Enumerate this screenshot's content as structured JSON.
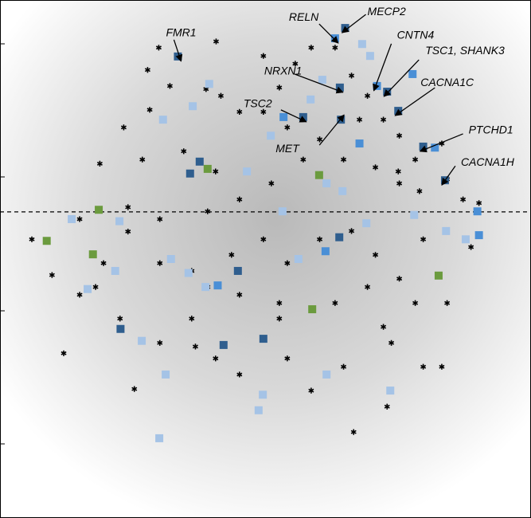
{
  "chart_data": {
    "type": "scatter",
    "xlim": [
      0,
      100
    ],
    "ylim": [
      0,
      100
    ],
    "reference_line": 59.1,
    "series": [
      {
        "marker": "star",
        "color": "#000000",
        "x": [
          29.9,
          40.7,
          27.8,
          32,
          28.2,
          38.8,
          41.6,
          23.3,
          18.8,
          26.8,
          34.6,
          40.6,
          45.1,
          49.6,
          55.6,
          58.6,
          63.1,
          66.2,
          69.2,
          52.6,
          49.6,
          54.1,
          60.2,
          67.7,
          72.2,
          75.2,
          78.2,
          75.2,
          70.7,
          64.7,
          57.1,
          51.1,
          45.1,
          39.1,
          30.1,
          24.1,
          15,
          6,
          9.8,
          15,
          19.5,
          24.1,
          30.1,
          36.1,
          43.6,
          49.6,
          54.1,
          60.2,
          66.2,
          70.7,
          75.2,
          78.2,
          84.2,
          79.7,
          87.2,
          90.2,
          88.7,
          69.2,
          63.1,
          52.6,
          45.1,
          39.1,
          36.1,
          30.1,
          36.8,
          40.6,
          45.1,
          52.6,
          54.1,
          58.6,
          64.7,
          72.2,
          73.7,
          79.7,
          83.2,
          72.9,
          66.6,
          25.3,
          12,
          22.6,
          18,
          83.2,
          84.2,
          79,
          75
        ],
        "y": [
          90.8,
          92,
          86.5,
          83.4,
          78.8,
          82.8,
          81.5,
          75.4,
          68.4,
          69.2,
          70.8,
          66.9,
          78.4,
          89.2,
          87.7,
          90.8,
          90.8,
          85.4,
          81.5,
          83.1,
          78.4,
          75.4,
          73.1,
          76.9,
          76.9,
          73.8,
          69.2,
          64.6,
          67.7,
          69.2,
          69.2,
          64.6,
          61.5,
          59.2,
          57.7,
          60,
          57.7,
          53.8,
          46.9,
          43.1,
          49.2,
          55.3,
          49.2,
          47.7,
          50.8,
          53.8,
          49.2,
          53.8,
          55.4,
          50.8,
          46.2,
          41.5,
          41.5,
          53.8,
          61.5,
          60.8,
          52.3,
          44.6,
          41.5,
          41.5,
          43.1,
          44.6,
          38.5,
          33.8,
          33.1,
          30.8,
          27.7,
          38.5,
          30.8,
          24.6,
          29.2,
          36.9,
          33.8,
          29.2,
          29.2,
          21.5,
          16.6,
          24.9,
          31.8,
          38.5,
          44.6,
          72.3,
          65.4,
          63.1,
          66.9
        ]
      },
      {
        "marker": "square",
        "color": "#2f5e8e",
        "x": [
          33.5,
          65,
          57.1,
          64.2,
          75,
          72.9,
          83.8,
          79.7,
          37.6,
          35.8,
          22.7,
          42.1,
          49.6,
          44.8,
          63.9,
          64
        ],
        "y": [
          89.1,
          94.6,
          77.4,
          76.9,
          78.6,
          82.3,
          65.2,
          71.7,
          68.8,
          66.5,
          36.5,
          33.4,
          34.6,
          47.7,
          54.2,
          83.1
        ]
      },
      {
        "marker": "square",
        "color": "#4a8fd6",
        "x": [
          63.1,
          71,
          77.7,
          53.4,
          81.9,
          89.9,
          41,
          61.3,
          67.7,
          90.2
        ],
        "y": [
          92.6,
          83.4,
          85.7,
          77.4,
          71.5,
          59.2,
          44.9,
          51.5,
          72.3,
          54.6
        ]
      },
      {
        "marker": "square",
        "color": "#a5c3e6",
        "x": [
          68.2,
          69.7,
          36.3,
          39.4,
          30.7,
          13.5,
          22.5,
          32.2,
          35.5,
          38.7,
          16.5,
          21.7,
          26.7,
          31.2,
          30,
          48.7,
          49.5,
          61.5,
          73.5,
          56.2,
          69,
          78,
          84,
          87.7,
          61.5,
          64.5,
          53.2,
          46.5,
          51,
          58.5,
          60.7
        ],
        "y": [
          91.5,
          89.2,
          79.5,
          83.8,
          76.9,
          57.7,
          57.3,
          50,
          47.3,
          44.6,
          44.2,
          47.7,
          34.2,
          27.7,
          15.4,
          20.8,
          23.8,
          27.7,
          24.6,
          50,
          56.9,
          58.5,
          55.4,
          53.8,
          64.6,
          63.1,
          59.2,
          66.9,
          73.8,
          80.8,
          84.6
        ]
      },
      {
        "marker": "square",
        "color": "#6b9b3e",
        "x": [
          18.6,
          8.8,
          17.5,
          39.1,
          60.1,
          58.8,
          82.6
        ],
        "y": [
          59.5,
          53.5,
          50.9,
          67.4,
          66.2,
          40.3,
          46.8
        ]
      }
    ],
    "annotations": [
      {
        "text": "FMR1",
        "x": 33.5,
        "y": 89.1
      },
      {
        "text": "RELN",
        "x": 63.1,
        "y": 92.6
      },
      {
        "text": "MECP2",
        "x": 65,
        "y": 94.6
      },
      {
        "text": "CNTN4",
        "x": 71,
        "y": 83.4
      },
      {
        "text": "TSC1, SHANK3",
        "x": 72.9,
        "y": 82.3
      },
      {
        "text": "CACNA1C",
        "x": 75,
        "y": 78.6
      },
      {
        "text": "NRXN1",
        "x": 64,
        "y": 83.1
      },
      {
        "text": "TSC2",
        "x": 57.1,
        "y": 77.4
      },
      {
        "text": "MET",
        "x": 64.2,
        "y": 76.9
      },
      {
        "text": "PTCHD1",
        "x": 79.7,
        "y": 71.7
      },
      {
        "text": "CACNA1H",
        "x": 83.8,
        "y": 65.2
      }
    ]
  }
}
